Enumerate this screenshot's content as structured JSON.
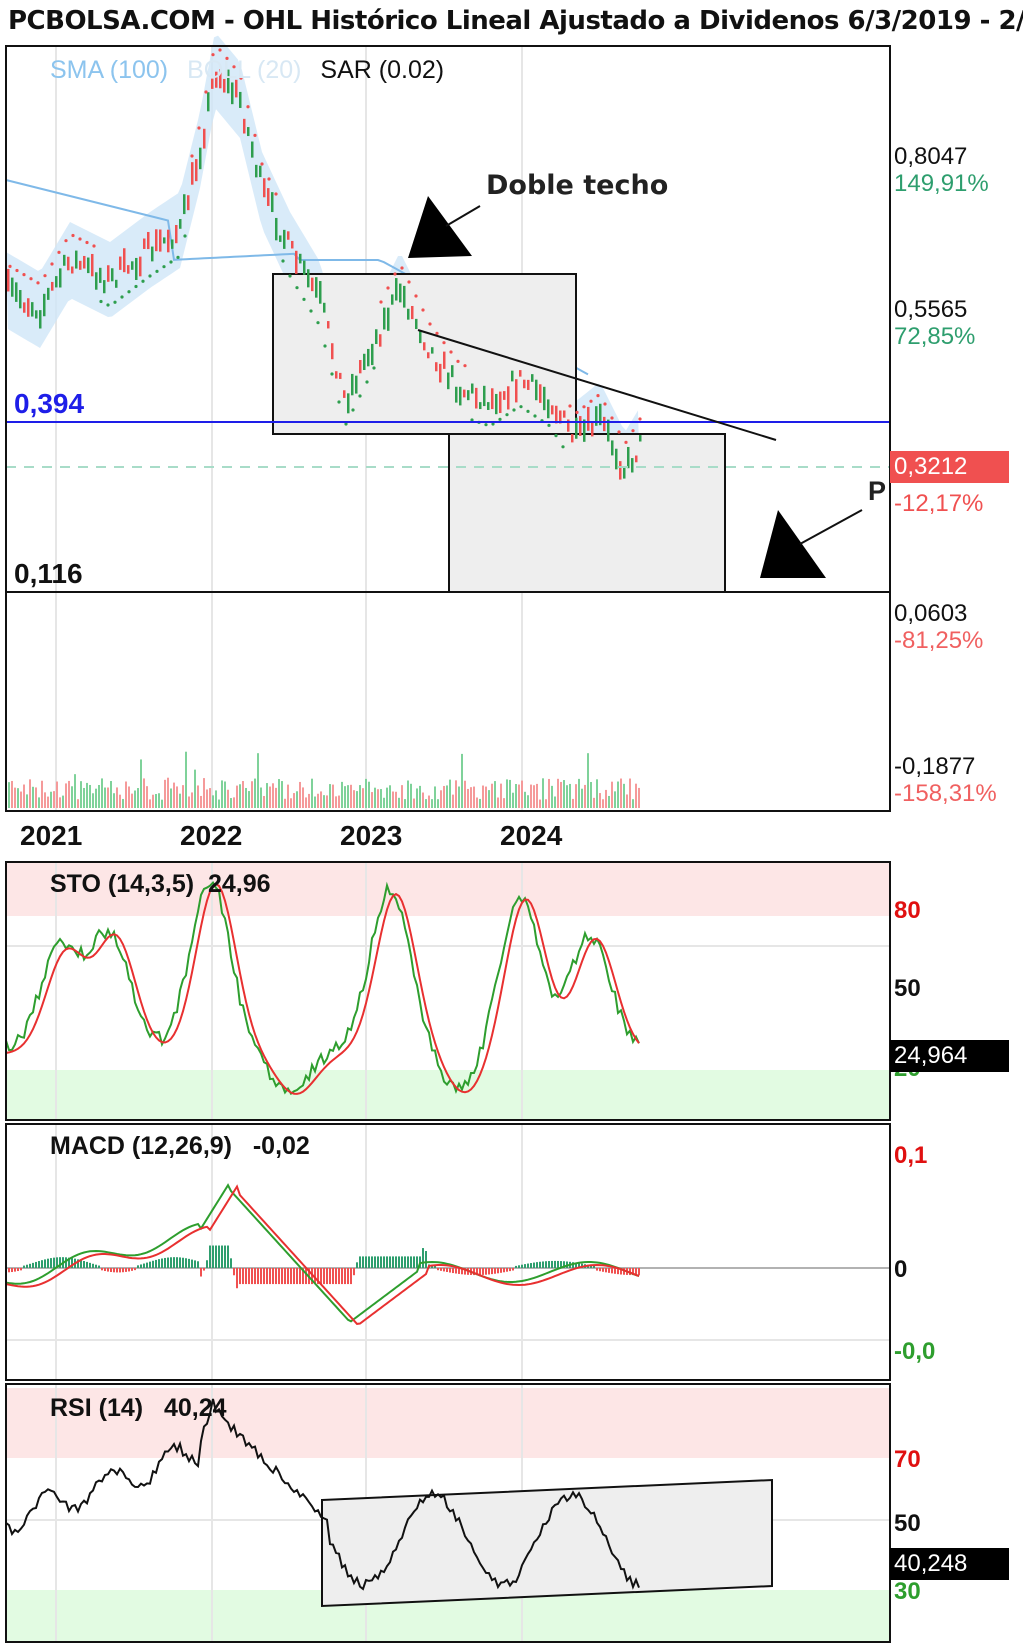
{
  "header": {
    "title": "PCBOLSA.COM - OHL Histórico Lineal Ajustado a Dividenos 6/3/2019 - 2/"
  },
  "legend": {
    "sma": "SMA (100)",
    "boll": "BOLL (20)",
    "sar": "SAR (0.02)"
  },
  "annotations": {
    "double_top": "Doble techo",
    "p_label": "P",
    "support_level": "0,394",
    "low_level": "0,116"
  },
  "price_axis": [
    {
      "price": "0,8047",
      "pct": "149,91%",
      "pct_color": "#2e9e6e"
    },
    {
      "price": "0,5565",
      "pct": "72,85%",
      "pct_color": "#2e9e6e"
    },
    {
      "price": "0,0603",
      "pct": "-81,25%",
      "pct_color": "#f06060"
    },
    {
      "price": "-0,1877",
      "pct": "-158,31%",
      "pct_color": "#f06060"
    }
  ],
  "current": {
    "price": "0,3212",
    "pct": "-12,17%"
  },
  "years": [
    "2021",
    "2022",
    "2023",
    "2024"
  ],
  "sto": {
    "label": "STO (14,3,5)",
    "value": "24,96",
    "tag": "24,964",
    "levels": [
      "80",
      "50",
      "20"
    ]
  },
  "macd": {
    "label": "MACD (12,26,9)",
    "value": "-0,02",
    "levels": [
      "0,1",
      "0",
      "-0,0"
    ]
  },
  "rsi": {
    "label": "RSI (14)",
    "value": "40,24",
    "tag": "40,248",
    "levels": [
      "70",
      "50",
      "30"
    ]
  },
  "colors": {
    "up": "#2e9e4e",
    "down": "#f05050",
    "sma": "#7fb9e8",
    "band": "#cfe6f7",
    "support": "#1e1ee8",
    "tag_bg": "#000000",
    "current_bg": "#f05050"
  },
  "chart_data": [
    {
      "type": "line",
      "title": "PCBOLSA.COM - OHL Histórico Lineal Ajustado a Dividenos 6/3/2019 - 2/",
      "x": [
        "2021",
        "2022",
        "2023",
        "2024"
      ],
      "series": [
        {
          "name": "SMA (100)",
          "values": [
            0.62,
            0.56,
            0.58,
            0.44
          ]
        },
        {
          "name": "SAR (0.02)",
          "values": [
            0.7,
            0.8,
            0.62,
            0.4
          ]
        }
      ],
      "ylim": [
        -0.25,
        1.05
      ]
    },
    {
      "type": "line",
      "title": "STO (14,3,5)",
      "x": [
        "2021",
        "2022",
        "2023",
        "2024"
      ],
      "series": [
        {
          "name": "STO (14,3,5)",
          "values": [
            55,
            88,
            80,
            24.96
          ]
        }
      ],
      "ylim": [
        0,
        100
      ]
    },
    {
      "type": "line",
      "title": "MACD (12,26,9)",
      "x": [
        "2021",
        "2022",
        "2023",
        "2024"
      ],
      "series": [
        {
          "name": "MACD (12,26,9)",
          "values": [
            0.0,
            0.08,
            -0.05,
            -0.02
          ]
        }
      ],
      "ylim": [
        -0.07,
        0.1
      ]
    },
    {
      "type": "line",
      "title": "RSI (14)",
      "x": [
        "2021",
        "2022",
        "2023",
        "2024"
      ],
      "series": [
        {
          "name": "RSI (14)",
          "values": [
            50,
            80,
            55,
            40.24
          ]
        }
      ],
      "ylim": [
        20,
        85
      ]
    }
  ]
}
